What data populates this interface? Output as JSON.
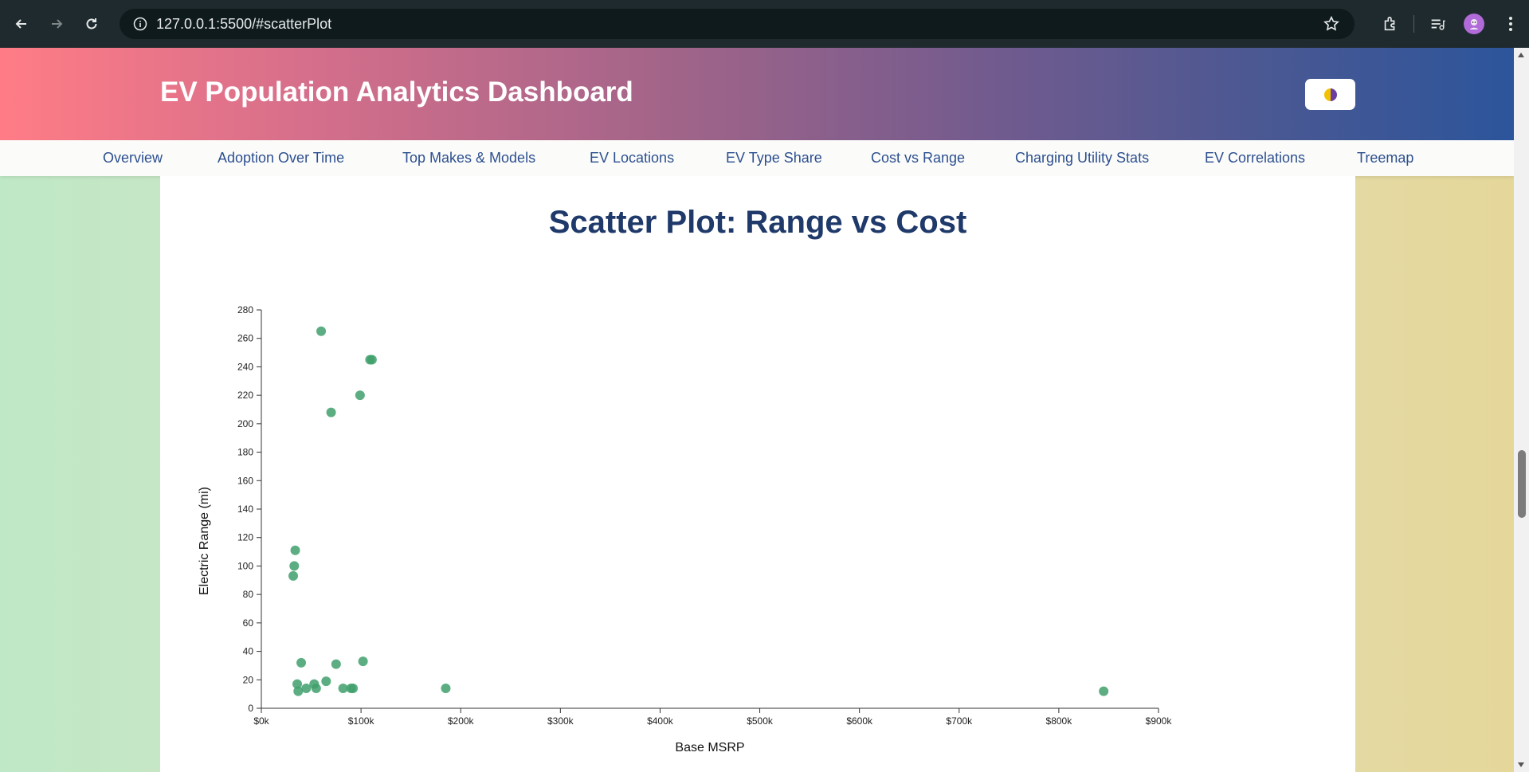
{
  "browser": {
    "url": "127.0.0.1:5500/#scatterPlot"
  },
  "header": {
    "title": "EV Population Analytics Dashboard"
  },
  "nav": {
    "items": [
      "Overview",
      "Adoption Over Time",
      "Top Makes & Models",
      "EV Locations",
      "EV Type Share",
      "Cost vs Range",
      "Charging Utility Stats",
      "EV Correlations",
      "Treemap"
    ]
  },
  "section": {
    "title": "Scatter Plot: Range vs Cost"
  },
  "colors": {
    "point": "#3fa06c",
    "header_start": "#ff7c86",
    "header_end": "#2c559b",
    "nav_text": "#2d4f8f",
    "title_text": "#1f3a6a"
  },
  "chart_data": {
    "type": "scatter",
    "title": "Scatter Plot: Range vs Cost",
    "xlabel": "Base MSRP",
    "ylabel": "Electric Range (mi)",
    "xlim": [
      0,
      900000
    ],
    "ylim": [
      0,
      280
    ],
    "xticks": [
      "$0k",
      "$100k",
      "$200k",
      "$300k",
      "$400k",
      "$500k",
      "$600k",
      "$700k",
      "$800k",
      "$900k"
    ],
    "yticks": [
      "0",
      "20",
      "40",
      "60",
      "80",
      "100",
      "120",
      "140",
      "160",
      "180",
      "200",
      "220",
      "240",
      "260",
      "280"
    ],
    "points": [
      {
        "x": 60000,
        "y": 265
      },
      {
        "x": 109000,
        "y": 245
      },
      {
        "x": 111000,
        "y": 245
      },
      {
        "x": 99000,
        "y": 220
      },
      {
        "x": 70000,
        "y": 208
      },
      {
        "x": 34000,
        "y": 111
      },
      {
        "x": 33000,
        "y": 100
      },
      {
        "x": 32000,
        "y": 93
      },
      {
        "x": 40000,
        "y": 32
      },
      {
        "x": 75000,
        "y": 31
      },
      {
        "x": 102000,
        "y": 33
      },
      {
        "x": 36000,
        "y": 17
      },
      {
        "x": 37000,
        "y": 12
      },
      {
        "x": 45000,
        "y": 14
      },
      {
        "x": 53000,
        "y": 17
      },
      {
        "x": 55000,
        "y": 14
      },
      {
        "x": 65000,
        "y": 19
      },
      {
        "x": 82000,
        "y": 14
      },
      {
        "x": 90000,
        "y": 14
      },
      {
        "x": 92000,
        "y": 14
      },
      {
        "x": 185000,
        "y": 14
      },
      {
        "x": 845000,
        "y": 12
      }
    ]
  }
}
